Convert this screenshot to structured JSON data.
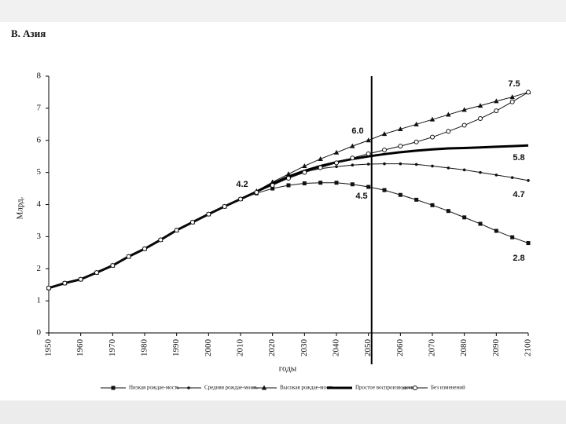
{
  "chart_data": {
    "type": "line",
    "panel_title": "В.   Азия",
    "ylabel": "Млрд.",
    "xlabel": "годы",
    "x": [
      1950,
      1955,
      1960,
      1965,
      1970,
      1975,
      1980,
      1985,
      1990,
      1995,
      2000,
      2005,
      2010,
      2015,
      2020,
      2025,
      2030,
      2035,
      2040,
      2045,
      2050,
      2055,
      2060,
      2065,
      2070,
      2075,
      2080,
      2085,
      2090,
      2095,
      2100
    ],
    "xlim": [
      1950,
      2100
    ],
    "xticks": [
      1950,
      1960,
      1970,
      1980,
      1990,
      2000,
      2010,
      2020,
      2030,
      2040,
      2050,
      2060,
      2070,
      2080,
      2090,
      2100
    ],
    "ylim": [
      0,
      8
    ],
    "yticks": [
      0,
      1,
      2,
      3,
      4,
      5,
      6,
      7,
      8
    ],
    "reference_line_x": 2051,
    "series": [
      {
        "name": "Низкая рождае-мость",
        "color": "#111111",
        "marker": "square",
        "values": [
          1.4,
          1.55,
          1.67,
          1.88,
          2.1,
          2.38,
          2.62,
          2.9,
          3.2,
          3.45,
          3.7,
          3.94,
          4.17,
          4.35,
          4.5,
          4.6,
          4.66,
          4.68,
          4.68,
          4.63,
          4.55,
          4.45,
          4.3,
          4.15,
          3.98,
          3.8,
          3.6,
          3.4,
          3.18,
          2.98,
          2.8
        ]
      },
      {
        "name": "Средняя рождае-мость",
        "color": "#111111",
        "marker": "dot",
        "values": [
          1.4,
          1.55,
          1.67,
          1.88,
          2.1,
          2.38,
          2.62,
          2.9,
          3.2,
          3.45,
          3.7,
          3.94,
          4.17,
          4.4,
          4.62,
          4.85,
          5.02,
          5.12,
          5.18,
          5.23,
          5.26,
          5.27,
          5.27,
          5.25,
          5.2,
          5.14,
          5.08,
          5.0,
          4.92,
          4.84,
          4.75
        ]
      },
      {
        "name": "Высокая рождае-мость",
        "color": "#111111",
        "marker": "triangle",
        "values": [
          1.4,
          1.55,
          1.67,
          1.88,
          2.1,
          2.38,
          2.62,
          2.9,
          3.2,
          3.45,
          3.7,
          3.94,
          4.17,
          4.42,
          4.7,
          4.95,
          5.2,
          5.42,
          5.62,
          5.82,
          6.0,
          6.2,
          6.35,
          6.5,
          6.65,
          6.8,
          6.95,
          7.08,
          7.22,
          7.35,
          7.5
        ]
      },
      {
        "name": "Простое воспроизводство",
        "color": "#000000",
        "marker": "none",
        "values": [
          1.4,
          1.55,
          1.67,
          1.88,
          2.1,
          2.38,
          2.62,
          2.9,
          3.2,
          3.45,
          3.7,
          3.94,
          4.17,
          4.4,
          4.65,
          4.87,
          5.05,
          5.2,
          5.32,
          5.42,
          5.5,
          5.57,
          5.63,
          5.68,
          5.72,
          5.75,
          5.76,
          5.78,
          5.8,
          5.82,
          5.84
        ]
      },
      {
        "name": "Без изменений",
        "color": "#111111",
        "marker": "circle",
        "values": [
          1.4,
          1.55,
          1.67,
          1.88,
          2.1,
          2.38,
          2.62,
          2.9,
          3.2,
          3.45,
          3.7,
          3.94,
          4.17,
          4.38,
          4.6,
          4.82,
          5.0,
          5.15,
          5.3,
          5.45,
          5.58,
          5.7,
          5.82,
          5.95,
          6.1,
          6.28,
          6.47,
          6.68,
          6.92,
          7.2,
          7.5
        ]
      }
    ],
    "annotations": [
      "7.5",
      "6.0",
      "5.8",
      "4.7",
      "4.2",
      "4.5",
      "2.8"
    ]
  }
}
